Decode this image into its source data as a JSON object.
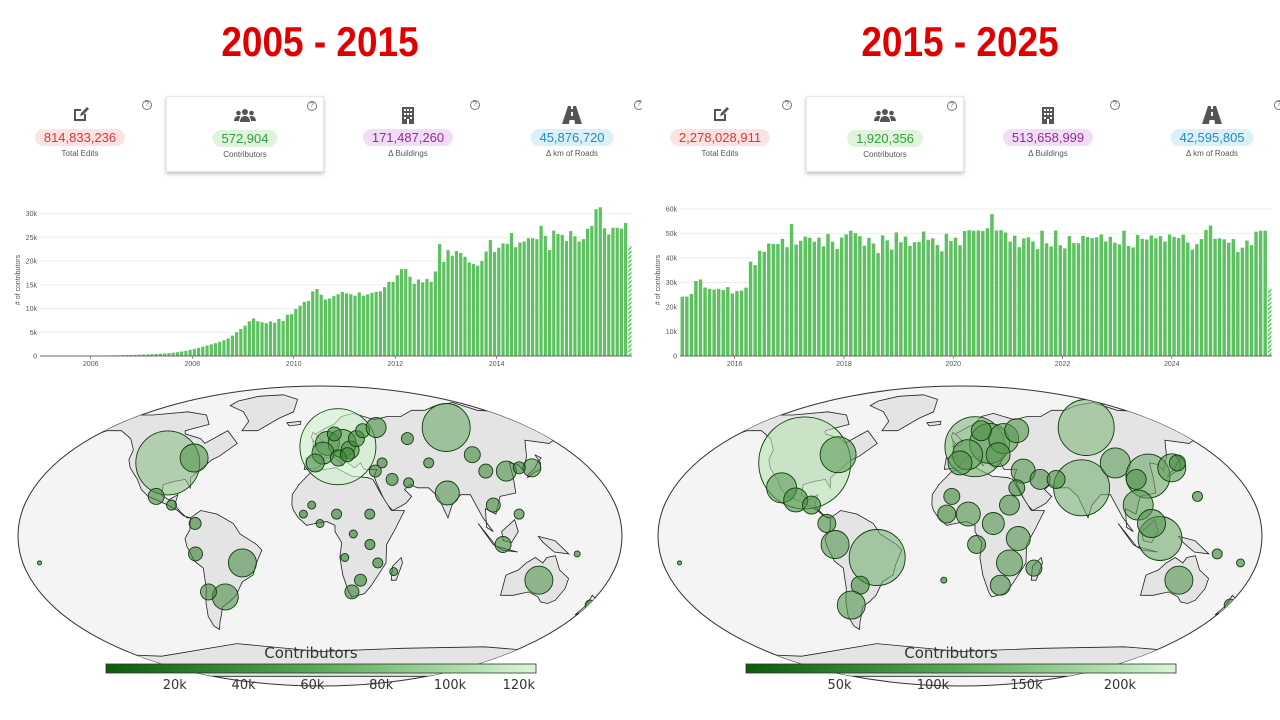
{
  "panels": [
    {
      "title": "2005 - 2015",
      "cards": [
        {
          "icon": "edit-icon",
          "value": "814,833,236",
          "label": "Total Edits",
          "color": "#d9383a",
          "bg": "#fde2e2",
          "active": false
        },
        {
          "icon": "users-icon",
          "value": "572,904",
          "label": "Contributors",
          "color": "#2e9e3e",
          "bg": "#dff3dd",
          "active": true
        },
        {
          "icon": "building-icon",
          "value": "171,487,260",
          "label": "Δ Buildings",
          "color": "#8e2f9a",
          "bg": "#f1ddf5",
          "active": false
        },
        {
          "icon": "road-icon",
          "value": "45,876,720",
          "label": "Δ km of Roads",
          "color": "#1f8fbf",
          "bg": "#dcf0fa",
          "active": false
        }
      ],
      "map_legend": {
        "title": "Contributors",
        "ticks": [
          "20k",
          "40k",
          "60k",
          "80k",
          "100k",
          "120k"
        ],
        "min": 0,
        "max": 125000
      }
    },
    {
      "title": "2015 - 2025",
      "cards": [
        {
          "icon": "edit-icon",
          "value": "2,278,028,911",
          "label": "Total Edits",
          "color": "#d9383a",
          "bg": "#fde2e2",
          "active": false
        },
        {
          "icon": "users-icon",
          "value": "1,920,356",
          "label": "Contributors",
          "color": "#2e9e3e",
          "bg": "#dff3dd",
          "active": true
        },
        {
          "icon": "building-icon",
          "value": "513,658,999",
          "label": "Δ Buildings",
          "color": "#8e2f9a",
          "bg": "#f1ddf5",
          "active": false
        },
        {
          "icon": "road-icon",
          "value": "42,595,805",
          "label": "Δ km of Roads",
          "color": "#1f8fbf",
          "bg": "#dcf0fa",
          "active": false
        }
      ],
      "map_legend": {
        "title": "Contributors",
        "ticks": [
          "50k",
          "100k",
          "150k",
          "200k"
        ],
        "min": 0,
        "max": 230000
      }
    }
  ],
  "chart_data": [
    {
      "type": "bar",
      "ylabel": "# of contributors",
      "ylim": [
        0,
        32000
      ],
      "yticks": [
        0,
        5000,
        10000,
        15000,
        20000,
        25000,
        30000
      ],
      "ytick_labels": [
        "0",
        "5k",
        "10k",
        "15k",
        "20k",
        "25k",
        "30k"
      ],
      "xtick_labels": [
        "2006",
        "2008",
        "2010",
        "2012",
        "2014"
      ],
      "xtick_years": [
        2006,
        2008,
        2010,
        2012,
        2014
      ],
      "start": "2005-01",
      "bar_color": "#5cc25f",
      "last_bar_partial": true,
      "values": [
        15,
        18,
        22,
        25,
        30,
        35,
        40,
        45,
        50,
        55,
        60,
        68,
        75,
        85,
        95,
        105,
        120,
        135,
        150,
        170,
        190,
        215,
        240,
        270,
        300,
        340,
        380,
        430,
        480,
        540,
        600,
        700,
        800,
        950,
        1100,
        1300,
        1500,
        1700,
        1950,
        2200,
        2450,
        2700,
        3000,
        3300,
        3700,
        4300,
        5000,
        5700,
        6400,
        7300,
        7900,
        7300,
        7100,
        6900,
        7300,
        7000,
        7800,
        7400,
        8700,
        8800,
        9900,
        10600,
        11400,
        11600,
        13600,
        14100,
        12900,
        11900,
        12100,
        12600,
        13000,
        13500,
        13200,
        13000,
        12700,
        13400,
        12700,
        13000,
        13300,
        13500,
        13600,
        14500,
        15600,
        15600,
        17000,
        18300,
        18300,
        16700,
        15200,
        16100,
        15500,
        16200,
        15600,
        17800,
        23600,
        19800,
        22300,
        21100,
        22100,
        21700,
        20900,
        19700,
        19400,
        19000,
        20000,
        22000,
        24400,
        21900,
        22800,
        23700,
        23600,
        25900,
        22900,
        23900,
        24100,
        24800,
        24800,
        24600,
        27400,
        25300,
        22300,
        26400,
        25700,
        25500,
        24200,
        26300,
        25200,
        24100,
        24600,
        26800,
        27400,
        30900,
        31300,
        26900,
        25600,
        27000,
        27000,
        26800,
        28000,
        23200
      ],
      "start_year": 2005
    },
    {
      "type": "bar",
      "ylabel": "# of contributors",
      "ylim": [
        0,
        62000
      ],
      "yticks": [
        0,
        10000,
        20000,
        30000,
        40000,
        50000,
        60000
      ],
      "ytick_labels": [
        "0",
        "10k",
        "20k",
        "30k",
        "40k",
        "50k",
        "60k"
      ],
      "xtick_labels": [
        "2016",
        "2018",
        "2020",
        "2022",
        "2024"
      ],
      "xtick_years": [
        2016,
        2018,
        2020,
        2022,
        2024
      ],
      "start": "2015-01",
      "bar_color": "#5cc25f",
      "last_bar_partial": true,
      "values": [
        24200,
        24200,
        25300,
        30600,
        31200,
        27900,
        27400,
        27100,
        27400,
        26900,
        28100,
        25500,
        26500,
        26700,
        27900,
        38500,
        37100,
        42900,
        42500,
        45900,
        45700,
        45700,
        47800,
        44400,
        53800,
        45500,
        47000,
        48700,
        48200,
        46600,
        48300,
        44700,
        49800,
        46600,
        43700,
        48300,
        49600,
        51100,
        50100,
        48900,
        45000,
        48200,
        45900,
        42000,
        49200,
        47200,
        43400,
        50400,
        46400,
        48700,
        44900,
        46400,
        46500,
        50800,
        47400,
        48000,
        45300,
        42700,
        49800,
        46900,
        48300,
        45200,
        51000,
        51300,
        51100,
        51200,
        51000,
        52100,
        57900,
        51200,
        51300,
        50400,
        46700,
        49100,
        44400,
        48000,
        48400,
        46700,
        43600,
        51100,
        46000,
        44700,
        51200,
        45200,
        43900,
        48900,
        46100,
        46000,
        49000,
        48500,
        48100,
        48400,
        49600,
        46700,
        48600,
        46200,
        45500,
        51100,
        44900,
        44300,
        49400,
        47800,
        47500,
        49200,
        48000,
        48900,
        46700,
        49600,
        48600,
        48100,
        49500,
        46300,
        43400,
        45600,
        47700,
        51400,
        53200,
        47800,
        48000,
        47600,
        46200,
        47700,
        42400,
        44200,
        47100,
        45200,
        50700,
        51100,
        51100,
        27500
      ],
      "start_year": 2015
    }
  ]
}
